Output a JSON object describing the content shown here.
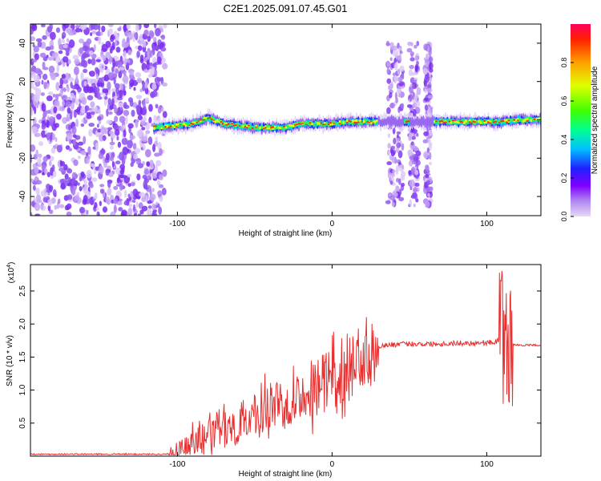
{
  "title": "C2E1.2025.091.07.45.G01",
  "chart_data": [
    {
      "type": "heatmap",
      "xlabel": "Height of straight line (km)",
      "ylabel": "Frequency (Hz)",
      "xlim": [
        -195,
        135
      ],
      "ylim": [
        -50,
        50
      ],
      "xticks": [
        -100,
        0,
        100
      ],
      "yticks": [
        -40,
        -20,
        0,
        20,
        40
      ],
      "grid": false,
      "colorbar": {
        "label": "Normalized spectral amplitude",
        "range": [
          0,
          1
        ],
        "ticks": [
          0.0,
          0.2,
          0.4,
          0.6,
          0.8
        ]
      },
      "ridge": {
        "x": [
          -115,
          -100,
          -90,
          -80,
          -70,
          -60,
          -50,
          -40,
          -30,
          -20,
          -10,
          0,
          10,
          20,
          30,
          40,
          60,
          80,
          100,
          110,
          120,
          135
        ],
        "y": [
          -4,
          -3,
          -2,
          1,
          -2,
          -3,
          -4,
          -4,
          -4,
          -2,
          -2,
          -2,
          -1,
          -1,
          -1,
          -1,
          -1,
          -1,
          -1,
          -1,
          0,
          0
        ]
      }
    },
    {
      "type": "line",
      "xlabel": "Height of straight line (km)",
      "ylabel": "SNR (10 * v/v)",
      "y_multiplier": "(x10",
      "y_multiplier_exp": "4",
      "y_multiplier_close": ")",
      "xlim": [
        -195,
        135
      ],
      "ylim": [
        0,
        2.9
      ],
      "xticks": [
        -100,
        0,
        100
      ],
      "yticks": [
        0.5,
        1.0,
        1.5,
        2.0,
        2.5
      ],
      "grid": false,
      "color": "#e83030",
      "series": [
        {
          "x": [
            -195,
            -150,
            -105,
            -100,
            -90,
            -80,
            -70,
            -60,
            -50,
            -40,
            -30,
            -20,
            -10,
            0,
            10,
            20,
            30,
            40,
            50,
            60,
            70,
            80,
            90,
            100,
            105,
            110,
            112,
            114,
            116,
            120,
            135
          ],
          "values": [
            0.03,
            0.03,
            0.03,
            0.05,
            0.2,
            0.3,
            0.4,
            0.5,
            0.6,
            0.75,
            0.85,
            0.95,
            1.05,
            1.2,
            1.35,
            1.55,
            1.67,
            1.69,
            1.7,
            1.7,
            1.7,
            1.71,
            1.71,
            1.72,
            1.72,
            1.8,
            2.0,
            1.4,
            1.7,
            1.68,
            1.68
          ]
        }
      ]
    }
  ]
}
